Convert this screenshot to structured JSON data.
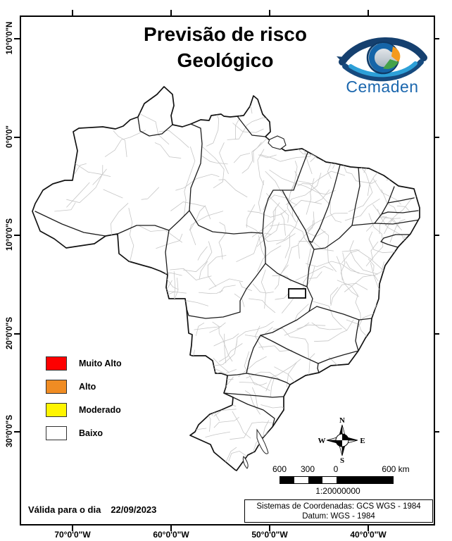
{
  "title": {
    "line1": "Previsão de risco",
    "line2": "Geológico"
  },
  "logo": {
    "name": "Cemaden"
  },
  "legend": {
    "items": [
      {
        "label": "Muito Alto",
        "color": "#fe0000"
      },
      {
        "label": "Alto",
        "color": "#f08c23"
      },
      {
        "label": "Moderado",
        "color": "#fff500"
      },
      {
        "label": "Baixo",
        "color": "#ffffff"
      }
    ]
  },
  "axes": {
    "longitude_labels": [
      "70°0'0\"W",
      "60°0'0\"W",
      "50°0'0\"W",
      "40°0'0\"W"
    ],
    "latitude_labels": [
      "10°0'0\"N",
      "0°0'0\"",
      "10°0'0\"S",
      "20°0'0\"S",
      "30°0'0\"S"
    ]
  },
  "compass": {
    "north": "N",
    "east": "E",
    "south": "S",
    "west": "W"
  },
  "scalebar": {
    "labels": [
      "600",
      "300",
      "0",
      "600 km"
    ],
    "ratio": "1:20000000"
  },
  "validity": {
    "label": "Válida para o dia",
    "date": "22/09/2023"
  },
  "coordinates": {
    "line1": "Sistemas de Coordenadas: GCS WGS - 1984",
    "line2": "Datum: WGS - 1984"
  },
  "map": {
    "country": "Brasil",
    "fill": "#ffffff",
    "state_border_color": "#1c1c1c",
    "municipal_border_color": "#c6c6c6"
  }
}
